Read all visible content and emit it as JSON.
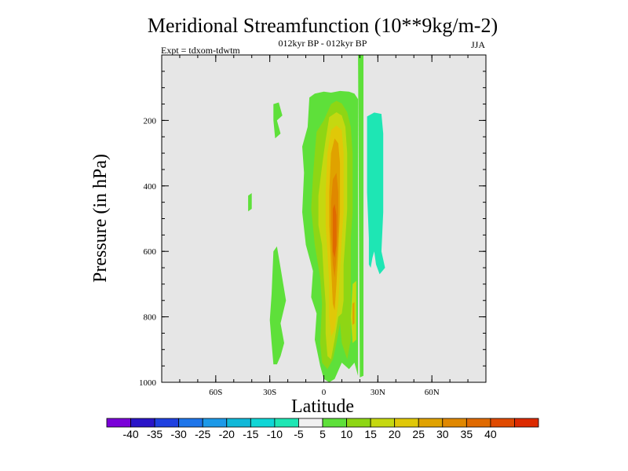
{
  "chart_data": {
    "type": "heatmap",
    "title": "Meridional Streamfunction (10**9kg/m-2)",
    "subtitle": "012kyr BP - 012kyr BP",
    "expt_label": "Expt = tdxom-tdwtm",
    "season": "JJA",
    "xlabel": "Latitude",
    "ylabel": "Pressure (in hPa)",
    "xlim": [
      -90,
      90
    ],
    "ylim": [
      1000,
      0
    ],
    "x_ticks": [
      {
        "value": -60,
        "label": "60S"
      },
      {
        "value": -30,
        "label": "30S"
      },
      {
        "value": 0,
        "label": "0"
      },
      {
        "value": 30,
        "label": "30N"
      },
      {
        "value": 60,
        "label": "60N"
      }
    ],
    "y_ticks": [
      {
        "value": 200,
        "label": "200"
      },
      {
        "value": 400,
        "label": "400"
      },
      {
        "value": 600,
        "label": "600"
      },
      {
        "value": 800,
        "label": "800"
      },
      {
        "value": 1000,
        "label": "1000"
      }
    ],
    "plot_background": "#e6e6e6",
    "colorbar": {
      "colors": [
        "#7a00d8",
        "#2a14c8",
        "#1f40e0",
        "#1e75ea",
        "#1c99e8",
        "#10b8d8",
        "#0fd6d6",
        "#1ee6b4",
        "#f0f0f0",
        "#5ee03a",
        "#8ed614",
        "#c5d810",
        "#e0c808",
        "#e0a200",
        "#e08800",
        "#e06a00",
        "#e04a00",
        "#dc2a00"
      ],
      "labels": [
        "-40",
        "-35",
        "-30",
        "-25",
        "-20",
        "-15",
        "-10",
        "-5",
        "5",
        "10",
        "15",
        "20",
        "25",
        "30",
        "35",
        "40"
      ]
    },
    "contours": [
      {
        "level": "5 to 10",
        "color": "#5ee03a",
        "points": [
          [
            -28,
            150
          ],
          [
            -25,
            145
          ],
          [
            -23,
            185
          ],
          [
            -26,
            200
          ],
          [
            -24,
            240
          ],
          [
            -27,
            255
          ],
          [
            -28,
            200
          ]
        ]
      },
      {
        "level": "5 to 10",
        "color": "#5ee03a",
        "points": [
          [
            -42,
            430
          ],
          [
            -40,
            422
          ],
          [
            -40,
            470
          ],
          [
            -42,
            478
          ]
        ]
      },
      {
        "level": "5 to 10",
        "color": "#5ee03a",
        "points": [
          [
            -28,
            600
          ],
          [
            -26,
            585
          ],
          [
            -24,
            650
          ],
          [
            -21,
            750
          ],
          [
            -24,
            820
          ],
          [
            -22,
            880
          ],
          [
            -24,
            920
          ],
          [
            -26,
            945
          ],
          [
            -28,
            945
          ],
          [
            -29,
            880
          ],
          [
            -30,
            810
          ],
          [
            -29,
            730
          ]
        ]
      },
      {
        "level": "5 to 10",
        "color": "#5ee03a",
        "points": [
          [
            -8,
            130
          ],
          [
            -5,
            118
          ],
          [
            0,
            112
          ],
          [
            4,
            115
          ],
          [
            9,
            110
          ],
          [
            14,
            112
          ],
          [
            17,
            118
          ],
          [
            19,
            135
          ],
          [
            19,
            980
          ],
          [
            17,
            940
          ],
          [
            14,
            960
          ],
          [
            10,
            940
          ],
          [
            6,
            990
          ],
          [
            3,
            1000
          ],
          [
            0,
            990
          ],
          [
            -2,
            950
          ],
          [
            -5,
            870
          ],
          [
            -4,
            790
          ],
          [
            -7,
            740
          ],
          [
            -6,
            660
          ],
          [
            -10,
            580
          ],
          [
            -12,
            480
          ],
          [
            -11,
            360
          ],
          [
            -12,
            280
          ],
          [
            -9,
            220
          ]
        ]
      },
      {
        "level": "5 to 10",
        "color": "#5ee03a",
        "points": [
          [
            19,
            0
          ],
          [
            22,
            0
          ],
          [
            22,
            980
          ],
          [
            20,
            985
          ]
        ]
      },
      {
        "level": "10 to 15",
        "color": "#8ed614",
        "points": [
          [
            -4,
            235
          ],
          [
            0,
            200
          ],
          [
            4,
            150
          ],
          [
            7,
            140
          ],
          [
            10,
            148
          ],
          [
            13,
            175
          ],
          [
            15,
            220
          ],
          [
            16,
            300
          ],
          [
            16,
            480
          ],
          [
            15,
            560
          ],
          [
            15,
            780
          ],
          [
            15,
            870
          ],
          [
            13,
            930
          ],
          [
            10,
            880
          ],
          [
            9,
            820
          ],
          [
            7,
            880
          ],
          [
            5,
            930
          ],
          [
            2,
            960
          ],
          [
            -1,
            940
          ],
          [
            -2,
            880
          ],
          [
            -1,
            760
          ],
          [
            -2,
            680
          ],
          [
            -5,
            580
          ],
          [
            -7,
            470
          ],
          [
            -6,
            370
          ],
          [
            -5,
            300
          ]
        ]
      },
      {
        "level": "15 to 20",
        "color": "#c5d810",
        "points": [
          [
            -1,
            340
          ],
          [
            1,
            260
          ],
          [
            3,
            190
          ],
          [
            7,
            175
          ],
          [
            10,
            185
          ],
          [
            12,
            220
          ],
          [
            13,
            300
          ],
          [
            13,
            470
          ],
          [
            12,
            560
          ],
          [
            11,
            640
          ],
          [
            11,
            750
          ],
          [
            10,
            790
          ],
          [
            8,
            800
          ],
          [
            6,
            870
          ],
          [
            4,
            930
          ],
          [
            2,
            920
          ],
          [
            1,
            850
          ],
          [
            1,
            760
          ],
          [
            0,
            680
          ],
          [
            -1,
            580
          ],
          [
            -3,
            520
          ],
          [
            -3,
            430
          ]
        ]
      },
      {
        "level": "15 to 20",
        "color": "#c5d810",
        "points": [
          [
            16,
            700
          ],
          [
            18,
            690
          ],
          [
            18,
            870
          ],
          [
            16,
            880
          ],
          [
            15,
            800
          ]
        ]
      },
      {
        "level": "20 to 25",
        "color": "#e0c808",
        "points": [
          [
            2,
            300
          ],
          [
            4,
            230
          ],
          [
            7,
            215
          ],
          [
            10,
            230
          ],
          [
            11,
            300
          ],
          [
            11,
            480
          ],
          [
            10,
            560
          ],
          [
            9,
            660
          ],
          [
            8,
            760
          ],
          [
            6,
            840
          ],
          [
            4,
            860
          ],
          [
            3,
            800
          ],
          [
            3,
            700
          ],
          [
            2,
            600
          ],
          [
            1,
            520
          ],
          [
            1,
            420
          ]
        ]
      },
      {
        "level": "25 to 30",
        "color": "#e0a200",
        "points": [
          [
            4,
            300
          ],
          [
            6,
            255
          ],
          [
            8,
            270
          ],
          [
            9,
            330
          ],
          [
            9,
            480
          ],
          [
            8,
            600
          ],
          [
            7,
            700
          ],
          [
            6,
            780
          ],
          [
            5,
            760
          ],
          [
            4,
            640
          ],
          [
            3,
            520
          ],
          [
            3,
            420
          ]
        ]
      },
      {
        "level": "25 to 30",
        "color": "#e0a200",
        "points": [
          [
            16,
            760
          ],
          [
            17,
            755
          ],
          [
            17,
            820
          ],
          [
            16,
            825
          ]
        ]
      },
      {
        "level": "30 to 35",
        "color": "#e08800",
        "points": [
          [
            5,
            380
          ],
          [
            7,
            360
          ],
          [
            8,
            420
          ],
          [
            8,
            520
          ],
          [
            7,
            620
          ],
          [
            6,
            680
          ],
          [
            5,
            640
          ],
          [
            4,
            540
          ],
          [
            4,
            450
          ]
        ]
      },
      {
        "level": "35 to 40",
        "color": "#e06a00",
        "points": [
          [
            5,
            470
          ],
          [
            6,
            455
          ],
          [
            7,
            490
          ],
          [
            7,
            580
          ],
          [
            6,
            620
          ],
          [
            5,
            600
          ],
          [
            5,
            530
          ]
        ]
      },
      {
        "level": "-10 to -5",
        "color": "#1ee6b4",
        "points": [
          [
            24,
            188
          ],
          [
            28,
            176
          ],
          [
            32,
            180
          ],
          [
            33,
            240
          ],
          [
            33,
            480
          ],
          [
            32,
            600
          ],
          [
            34,
            650
          ],
          [
            31,
            670
          ],
          [
            29,
            640
          ],
          [
            28,
            600
          ],
          [
            27,
            620
          ],
          [
            26,
            650
          ],
          [
            25,
            640
          ],
          [
            25,
            560
          ],
          [
            24,
            420
          ],
          [
            24,
            300
          ]
        ]
      }
    ]
  }
}
